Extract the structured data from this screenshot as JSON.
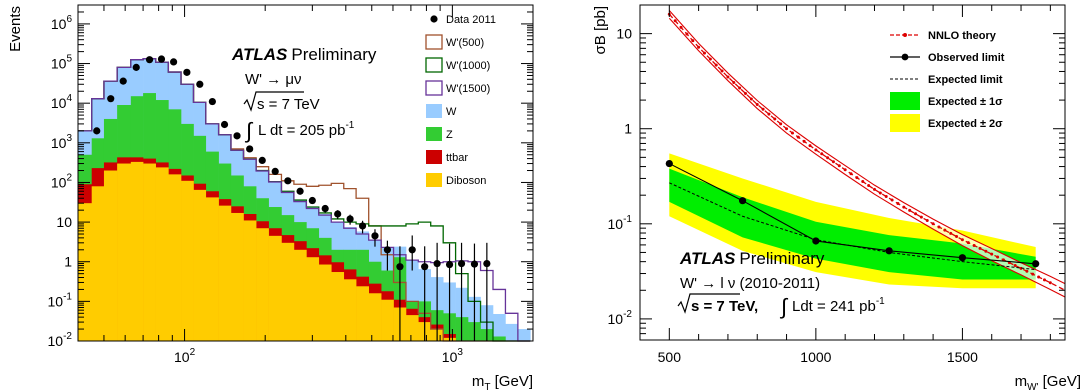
{
  "chart_data": [
    {
      "type": "bar",
      "stacked": true,
      "log_x": true,
      "log_y": true,
      "xlabel": "m",
      "xlabel_sub": "T",
      "xlabel_unit": " [GeV]",
      "ylabel": "Events",
      "xlim": [
        40,
        2000
      ],
      "ylim": [
        0.01,
        3000000
      ],
      "x_ticks": [
        {
          "value": 100,
          "label": "10",
          "exp": "2"
        },
        {
          "value": 1000,
          "label": "10",
          "exp": "3"
        }
      ],
      "y_ticks": [
        {
          "value": 0.01,
          "label": "10",
          "exp": "-2"
        },
        {
          "value": 0.1,
          "label": "10",
          "exp": "-1"
        },
        {
          "value": 1,
          "label": "1",
          "exp": ""
        },
        {
          "value": 10,
          "label": "10",
          "exp": ""
        },
        {
          "value": 100,
          "label": "10",
          "exp": "2"
        },
        {
          "value": 1000,
          "label": "10",
          "exp": "3"
        },
        {
          "value": 10000,
          "label": "10",
          "exp": "4"
        },
        {
          "value": 100000,
          "label": "10",
          "exp": "5"
        },
        {
          "value": 1000000,
          "label": "10",
          "exp": "6"
        }
      ],
      "bin_edges": [
        40,
        45,
        50,
        56,
        63,
        70,
        78,
        87,
        97,
        108,
        120,
        134,
        149,
        166,
        185,
        206,
        230,
        256,
        285,
        317,
        353,
        393,
        437,
        487,
        542,
        603,
        671,
        746,
        830,
        924,
        1028,
        1144,
        1274,
        1418,
        1578,
        1756,
        1954
      ],
      "stack": [
        {
          "name": "Diboson",
          "color": "#ffcc00",
          "values": [
            30,
            80,
            200,
            300,
            330,
            300,
            240,
            160,
            110,
            65,
            42,
            26,
            17,
            11,
            7,
            4.5,
            3,
            2,
            1.3,
            0.85,
            0.55,
            0.36,
            0.24,
            0.16,
            0.11,
            0.07,
            0.045,
            0.03,
            0.02,
            0.012,
            0.008,
            0.005,
            0.003,
            0.002,
            0.001,
            0.001
          ]
        },
        {
          "name": "ttbar",
          "color": "#cc0000",
          "values": [
            60,
            150,
            120,
            130,
            100,
            100,
            80,
            60,
            40,
            28,
            18,
            12,
            8,
            5,
            3.5,
            2.5,
            1.7,
            1.3,
            0.9,
            0.6,
            0.42,
            0.28,
            0.18,
            0.12,
            0.07,
            0.04,
            0.02,
            0.01,
            0.006,
            0.003,
            0.002,
            0.001,
            0.0005,
            0.0002,
            0.0001,
            0.0001
          ]
        },
        {
          "name": "Z",
          "color": "#33cc33",
          "values": [
            410,
            1070,
            3680,
            8570,
            14570,
            17600,
            11680,
            6780,
            2850,
            1407,
            540,
            262,
            125,
            64,
            29.5,
            17,
            10.3,
            6.7,
            4.8,
            2.55,
            1.03,
            1.36,
            1.58,
            0.72,
            0.42,
            1.19,
            0.035,
            0.06,
            0.034,
            0.035,
            0.03,
            0.024,
            0.0165,
            0.0108,
            0.0059,
            0.0039
          ]
        },
        {
          "name": "W",
          "color": "#99ccff",
          "values": [
            1500,
            11700,
            32000,
            71000,
            110000,
            115000,
            96000,
            54000,
            27000,
            9000,
            2400,
            1300,
            550,
            320,
            160,
            82,
            45,
            26,
            17,
            12,
            8,
            5.5,
            3.8,
            2.6,
            1.7,
            1.1,
            1.0,
            0.55,
            0.35,
            0.25,
            0.18,
            0.1,
            0.06,
            0.035,
            0.02,
            0.015
          ]
        }
      ],
      "signals": [
        {
          "name": "W'(500)",
          "color": "#a0522d",
          "values": [
            2000,
            13000,
            36000,
            80000,
            125000,
            133000,
            108000,
            61000,
            30000,
            10500,
            3000,
            1600,
            700,
            420,
            250,
            160,
            110,
            90,
            80,
            85,
            95,
            70,
            40,
            8,
            1.5,
            0.3,
            0.1,
            0.05,
            0.02,
            0.01,
            0.005,
            0.003,
            0.002,
            0.001,
            0.001,
            0.001
          ]
        },
        {
          "name": "W'(1000)",
          "color": "#006600",
          "values": [
            2000,
            13000,
            36000,
            80000,
            125000,
            133000,
            108000,
            61000,
            30000,
            10500,
            3000,
            1600,
            650,
            390,
            200,
            105,
            60,
            36,
            24,
            17,
            12,
            10,
            9,
            8,
            8,
            8,
            9,
            10,
            8,
            3,
            0.5,
            0.1,
            0.03,
            0.01,
            0.005,
            0.003
          ]
        },
        {
          "name": "W'(1500)",
          "color": "#663399",
          "values": [
            2000,
            13000,
            36000,
            80000,
            125000,
            133000,
            108000,
            61000,
            30000,
            10500,
            3000,
            1600,
            650,
            385,
            195,
            103,
            56,
            33,
            22,
            15,
            10,
            7,
            5,
            3.5,
            2.3,
            1.5,
            1.1,
            1.0,
            0.95,
            1.0,
            1.05,
            1.0,
            0.6,
            0.2,
            0.05,
            0.01
          ]
        }
      ],
      "data_points": {
        "name": "Data 2011",
        "x": [
          47,
          53,
          59,
          66,
          74,
          82,
          91,
          102,
          114,
          127,
          141,
          157,
          175,
          195,
          218,
          243,
          270,
          300,
          335,
          373,
          415,
          462,
          514,
          572,
          637,
          708,
          788,
          877,
          976,
          1082,
          1209,
          1345
        ],
        "y": [
          2000,
          13000,
          36000,
          80000,
          125000,
          130000,
          110000,
          60000,
          30000,
          11000,
          2900,
          1500,
          700,
          360,
          190,
          110,
          60,
          35,
          22,
          16,
          12,
          8,
          4.5,
          2,
          0.75,
          2,
          0.75,
          0.9,
          0.85,
          0.9,
          0.87,
          0.9
        ],
        "err_lo": [
          50,
          120,
          200,
          300,
          350,
          370,
          330,
          250,
          180,
          105,
          54,
          39,
          26,
          19,
          14,
          10.5,
          7.7,
          5.9,
          4.7,
          4,
          3.4,
          2.8,
          2.1,
          1.4,
          0.75,
          1.4,
          0.75,
          0.9,
          0.85,
          0.9,
          0.87,
          0.9
        ],
        "err_hi": [
          50,
          120,
          200,
          300,
          350,
          370,
          330,
          250,
          180,
          105,
          54,
          39,
          26,
          19,
          14,
          10.5,
          7.7,
          5.9,
          4.7,
          4,
          3.4,
          2.8,
          2.1,
          1.4,
          1.7,
          2.6,
          1.7,
          2.1,
          2.0,
          2.1,
          2.0,
          2.1
        ]
      },
      "legend": {
        "placement": "top-right",
        "entries": [
          {
            "label": "Data 2011",
            "kind": "point",
            "color": "#000000"
          },
          {
            "label": "W'(500)",
            "kind": "line-box",
            "color": "#a0522d"
          },
          {
            "label": "W'(1000)",
            "kind": "line-box",
            "color": "#006600"
          },
          {
            "label": "W'(1500)",
            "kind": "line-box",
            "color": "#663399"
          },
          {
            "label": "W",
            "kind": "fill",
            "color": "#99ccff"
          },
          {
            "label": "Z",
            "kind": "fill",
            "color": "#33cc33"
          },
          {
            "label": "ttbar",
            "kind": "fill",
            "color": "#cc0000"
          },
          {
            "label": "Diboson",
            "kind": "fill",
            "color": "#ffcc00"
          }
        ]
      },
      "annotations": {
        "atlas": "ATLAS",
        "preliminary": "Preliminary",
        "process": "W' → μν",
        "sqrt_s": "s = 7 TeV",
        "lumi_prefix": "L dt = 205 pb",
        "lumi_exp": "-1"
      }
    },
    {
      "type": "line",
      "log_y": true,
      "xlabel": "m",
      "xlabel_sub": "W'",
      "xlabel_unit": " [GeV]",
      "ylabel": "σB [pb]",
      "xlim": [
        400,
        1850
      ],
      "ylim": [
        0.006,
        20
      ],
      "x_ticks": [
        {
          "value": 500,
          "label": "500"
        },
        {
          "value": 1000,
          "label": "1000"
        },
        {
          "value": 1500,
          "label": "1500"
        }
      ],
      "y_ticks": [
        {
          "value": 0.01,
          "label": "10",
          "exp": "-2"
        },
        {
          "value": 0.1,
          "label": "10",
          "exp": "-1"
        },
        {
          "value": 1,
          "label": "1",
          "exp": ""
        },
        {
          "value": 10,
          "label": "10",
          "exp": ""
        }
      ],
      "x": [
        500,
        750,
        1000,
        1250,
        1500,
        1750
      ],
      "series": [
        {
          "name": "NNLO theory",
          "color": "#dd0000",
          "x": [
            500,
            600,
            700,
            800,
            900,
            1000,
            1100,
            1200,
            1300,
            1400,
            1500,
            1600,
            1700,
            1800,
            1850
          ],
          "values": [
            16,
            7.2,
            3.5,
            1.8,
            1.0,
            0.6,
            0.37,
            0.23,
            0.15,
            0.1,
            0.068,
            0.048,
            0.034,
            0.024,
            0.02
          ],
          "band_lo": [
            14.5,
            6.6,
            3.2,
            1.63,
            0.9,
            0.54,
            0.33,
            0.205,
            0.133,
            0.088,
            0.059,
            0.041,
            0.029,
            0.0204,
            0.017
          ],
          "band_hi": [
            17.5,
            7.9,
            3.85,
            1.98,
            1.1,
            0.66,
            0.41,
            0.255,
            0.167,
            0.112,
            0.077,
            0.055,
            0.039,
            0.028,
            0.0235
          ]
        },
        {
          "name": "Observed limit",
          "color": "#000000",
          "values": [
            0.43,
            0.175,
            0.066,
            0.052,
            0.044,
            0.038
          ]
        },
        {
          "name": "Expected  limit",
          "color": "#000000",
          "values": [
            0.27,
            0.12,
            0.068,
            0.05,
            0.04,
            0.033
          ],
          "band1_lo": [
            0.17,
            0.072,
            0.043,
            0.031,
            0.026,
            0.026
          ],
          "band1_hi": [
            0.38,
            0.19,
            0.105,
            0.076,
            0.062,
            0.045
          ],
          "band2_lo": [
            0.12,
            0.052,
            0.031,
            0.023,
            0.021,
            0.021
          ],
          "band2_hi": [
            0.55,
            0.3,
            0.17,
            0.115,
            0.085,
            0.057
          ]
        }
      ],
      "legend": {
        "placement": "top-right",
        "entries": [
          {
            "label": "NNLO theory",
            "kind": "dash-point",
            "color": "#dd0000"
          },
          {
            "label": "Observed limit",
            "kind": "line-point",
            "color": "#000000"
          },
          {
            "label": "Expected  limit",
            "kind": "dash",
            "color": "#000000"
          },
          {
            "label": "Expected ± 1σ",
            "kind": "fill",
            "color": "#00ee00"
          },
          {
            "label": "Expected ± 2σ",
            "kind": "fill",
            "color": "#ffff00"
          }
        ]
      },
      "annotations": {
        "atlas": "ATLAS",
        "preliminary": "Preliminary",
        "process": "W' → l ν (2010-2011)",
        "sqrt_s": "s = 7 TeV,",
        "lumi_prefix": "Ldt = 241 pb",
        "lumi_exp": "-1"
      }
    }
  ]
}
